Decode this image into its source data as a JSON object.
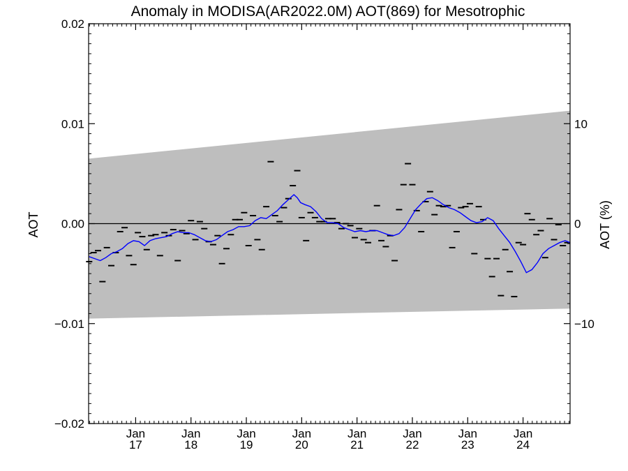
{
  "chart_data": {
    "type": "scatter",
    "title": "Anomaly in MODISA(AR2022.0M) AOT(869) for Mesotrophic",
    "ylabel": "AOT",
    "ylabel_right": "AOT (%)",
    "xlabel": "",
    "ylim": [
      -0.02,
      0.02
    ],
    "ylim_right_percent": [
      -20,
      20
    ],
    "xlim": [
      2016.15,
      2024.85
    ],
    "grid": false,
    "y_ticks": [
      {
        "value": 0.02,
        "label": "0.02"
      },
      {
        "value": 0.01,
        "label": "0.01"
      },
      {
        "value": 0.0,
        "label": "0.00"
      },
      {
        "value": -0.01,
        "label": "−0.01"
      },
      {
        "value": -0.02,
        "label": "−0.02"
      }
    ],
    "y_ticks_right": [
      {
        "value": 10,
        "label": "10"
      },
      {
        "value": 0,
        "label": "0"
      },
      {
        "value": -10,
        "label": "−10"
      }
    ],
    "x_ticks": [
      {
        "value": 2017.0,
        "month": "Jan",
        "year": "17"
      },
      {
        "value": 2018.0,
        "month": "Jan",
        "year": "18"
      },
      {
        "value": 2019.0,
        "month": "Jan",
        "year": "19"
      },
      {
        "value": 2020.0,
        "month": "Jan",
        "year": "20"
      },
      {
        "value": 2021.0,
        "month": "Jan",
        "year": "21"
      },
      {
        "value": 2022.0,
        "month": "Jan",
        "year": "22"
      },
      {
        "value": 2023.0,
        "month": "Jan",
        "year": "23"
      },
      {
        "value": 2024.0,
        "month": "Jan",
        "year": "24"
      }
    ],
    "band": {
      "x": [
        2016.15,
        2024.85
      ],
      "upper": [
        0.0065,
        0.0113
      ],
      "lower": [
        -0.0095,
        -0.0085
      ],
      "color": "#bebebe"
    },
    "reference_line": {
      "y": 0.0,
      "color": "#000000"
    },
    "series": [
      {
        "kind": "points",
        "marker": "dash",
        "color": "#000000",
        "x": [
          2016.16,
          2016.24,
          2016.32,
          2016.4,
          2016.48,
          2016.56,
          2016.64,
          2016.72,
          2016.8,
          2016.88,
          2016.96,
          2017.04,
          2017.12,
          2017.2,
          2017.28,
          2017.36,
          2017.44,
          2017.52,
          2017.6,
          2017.68,
          2017.76,
          2017.84,
          2017.92,
          2018.0,
          2018.08,
          2018.16,
          2018.24,
          2018.32,
          2018.4,
          2018.48,
          2018.56,
          2018.64,
          2018.72,
          2018.8,
          2018.88,
          2018.96,
          2019.04,
          2019.12,
          2019.2,
          2019.28,
          2019.36,
          2019.44,
          2019.52,
          2019.6,
          2019.68,
          2019.76,
          2019.84,
          2019.92,
          2020.0,
          2020.08,
          2020.16,
          2020.24,
          2020.32,
          2020.4,
          2020.48,
          2020.56,
          2020.64,
          2020.72,
          2020.8,
          2020.88,
          2020.96,
          2021.04,
          2021.12,
          2021.2,
          2021.28,
          2021.36,
          2021.44,
          2021.52,
          2021.6,
          2021.68,
          2021.76,
          2021.84,
          2021.92,
          2022.0,
          2022.08,
          2022.16,
          2022.24,
          2022.32,
          2022.4,
          2022.48,
          2022.56,
          2022.64,
          2022.72,
          2022.8,
          2022.88,
          2022.96,
          2023.04,
          2023.12,
          2023.2,
          2023.28,
          2023.36,
          2023.44,
          2023.52,
          2023.6,
          2023.68,
          2023.76,
          2023.84,
          2023.92,
          2024.0,
          2024.08,
          2024.16,
          2024.24,
          2024.32,
          2024.4,
          2024.48,
          2024.56,
          2024.64,
          2024.72,
          2024.8
        ],
        "y": [
          -0.0038,
          -0.0029,
          -0.0027,
          -0.0058,
          -0.0024,
          -0.0042,
          -0.0029,
          -0.0008,
          -0.0004,
          -0.0032,
          -0.0041,
          -0.0009,
          -0.0013,
          -0.0026,
          -0.0012,
          -0.0011,
          -0.0032,
          -0.0009,
          -0.0012,
          -0.0006,
          -0.0037,
          -0.0007,
          -0.001,
          0.0003,
          -0.0016,
          0.0002,
          -0.0005,
          -0.0018,
          -0.0021,
          -0.0012,
          -0.004,
          -0.0025,
          -0.0011,
          0.0004,
          0.0004,
          0.0011,
          -0.0022,
          0.0008,
          -0.0016,
          -0.0026,
          0.0017,
          0.0062,
          0.0008,
          0.0002,
          0.0016,
          0.0025,
          0.0038,
          0.0053,
          0.0006,
          -0.0017,
          0.0011,
          0.0006,
          0.0002,
          0.0002,
          0.0005,
          0.0005,
          0.0001,
          -0.0005,
          0.0,
          -0.0002,
          -0.0014,
          -0.0005,
          -0.0016,
          -0.0019,
          -0.0007,
          0.0018,
          -0.0017,
          -0.0023,
          -0.0012,
          -0.0037,
          0.0014,
          0.0039,
          0.006,
          0.0039,
          0.0013,
          -0.0008,
          0.0022,
          0.0032,
          0.0009,
          0.0018,
          0.0017,
          0.0018,
          -0.0024,
          -0.0008,
          0.0016,
          0.0017,
          0.002,
          -0.003,
          0.0017,
          0.0004,
          -0.0035,
          -0.0053,
          -0.0035,
          -0.0072,
          -0.0026,
          -0.0048,
          -0.0073,
          -0.0019,
          -0.0021,
          0.001,
          0.0004,
          -0.0011,
          -0.0007,
          -0.0034,
          0.0005,
          -0.0016,
          -0.0001,
          -0.0022,
          -0.0019
        ]
      },
      {
        "kind": "line",
        "color": "#0000ff",
        "x": [
          2016.16,
          2016.26,
          2016.36,
          2016.46,
          2016.56,
          2016.66,
          2016.76,
          2016.86,
          2016.96,
          2017.06,
          2017.16,
          2017.26,
          2017.36,
          2017.46,
          2017.56,
          2017.66,
          2017.76,
          2017.86,
          2017.96,
          2018.06,
          2018.16,
          2018.26,
          2018.36,
          2018.46,
          2018.56,
          2018.66,
          2018.76,
          2018.86,
          2018.96,
          2019.06,
          2019.16,
          2019.26,
          2019.36,
          2019.46,
          2019.56,
          2019.66,
          2019.76,
          2019.86,
          2019.92,
          2019.98,
          2020.06,
          2020.16,
          2020.26,
          2020.36,
          2020.46,
          2020.56,
          2020.66,
          2020.76,
          2020.86,
          2020.96,
          2021.06,
          2021.16,
          2021.26,
          2021.36,
          2021.46,
          2021.56,
          2021.66,
          2021.76,
          2021.86,
          2021.96,
          2022.06,
          2022.16,
          2022.26,
          2022.36,
          2022.46,
          2022.56,
          2022.66,
          2022.76,
          2022.86,
          2022.96,
          2023.06,
          2023.16,
          2023.26,
          2023.36,
          2023.46,
          2023.56,
          2023.66,
          2023.76,
          2023.86,
          2023.96,
          2024.06,
          2024.16,
          2024.26,
          2024.36,
          2024.46,
          2024.56,
          2024.66,
          2024.76,
          2024.85
        ],
        "y": [
          -0.0033,
          -0.0035,
          -0.0037,
          -0.0034,
          -0.003,
          -0.0028,
          -0.0025,
          -0.002,
          -0.0017,
          -0.0018,
          -0.0022,
          -0.0017,
          -0.0015,
          -0.0014,
          -0.0013,
          -0.001,
          -0.0008,
          -0.0009,
          -0.0009,
          -0.0011,
          -0.0014,
          -0.0017,
          -0.0018,
          -0.0016,
          -0.0012,
          -0.0008,
          -0.0006,
          -0.0003,
          -0.0003,
          -0.0002,
          0.0003,
          0.0006,
          0.0005,
          0.0009,
          0.0013,
          0.0019,
          0.0024,
          0.0029,
          0.0026,
          0.0021,
          0.0019,
          0.0017,
          0.0012,
          0.0005,
          0.0001,
          0.0001,
          0.0,
          -0.0004,
          -0.0006,
          -0.0008,
          -0.0007,
          -0.0008,
          -0.0007,
          -0.0007,
          -0.0009,
          -0.0011,
          -0.0012,
          -0.001,
          -0.0004,
          0.0005,
          0.0014,
          0.002,
          0.0025,
          0.0026,
          0.0023,
          0.0019,
          0.0016,
          0.0014,
          0.0011,
          0.0007,
          0.0003,
          0.0001,
          0.0002,
          0.0006,
          0.0003,
          -0.0005,
          -0.0012,
          -0.0019,
          -0.0028,
          -0.0038,
          -0.0049,
          -0.0046,
          -0.0039,
          -0.003,
          -0.0025,
          -0.0022,
          -0.0019,
          -0.0017,
          -0.0019
        ]
      }
    ]
  }
}
